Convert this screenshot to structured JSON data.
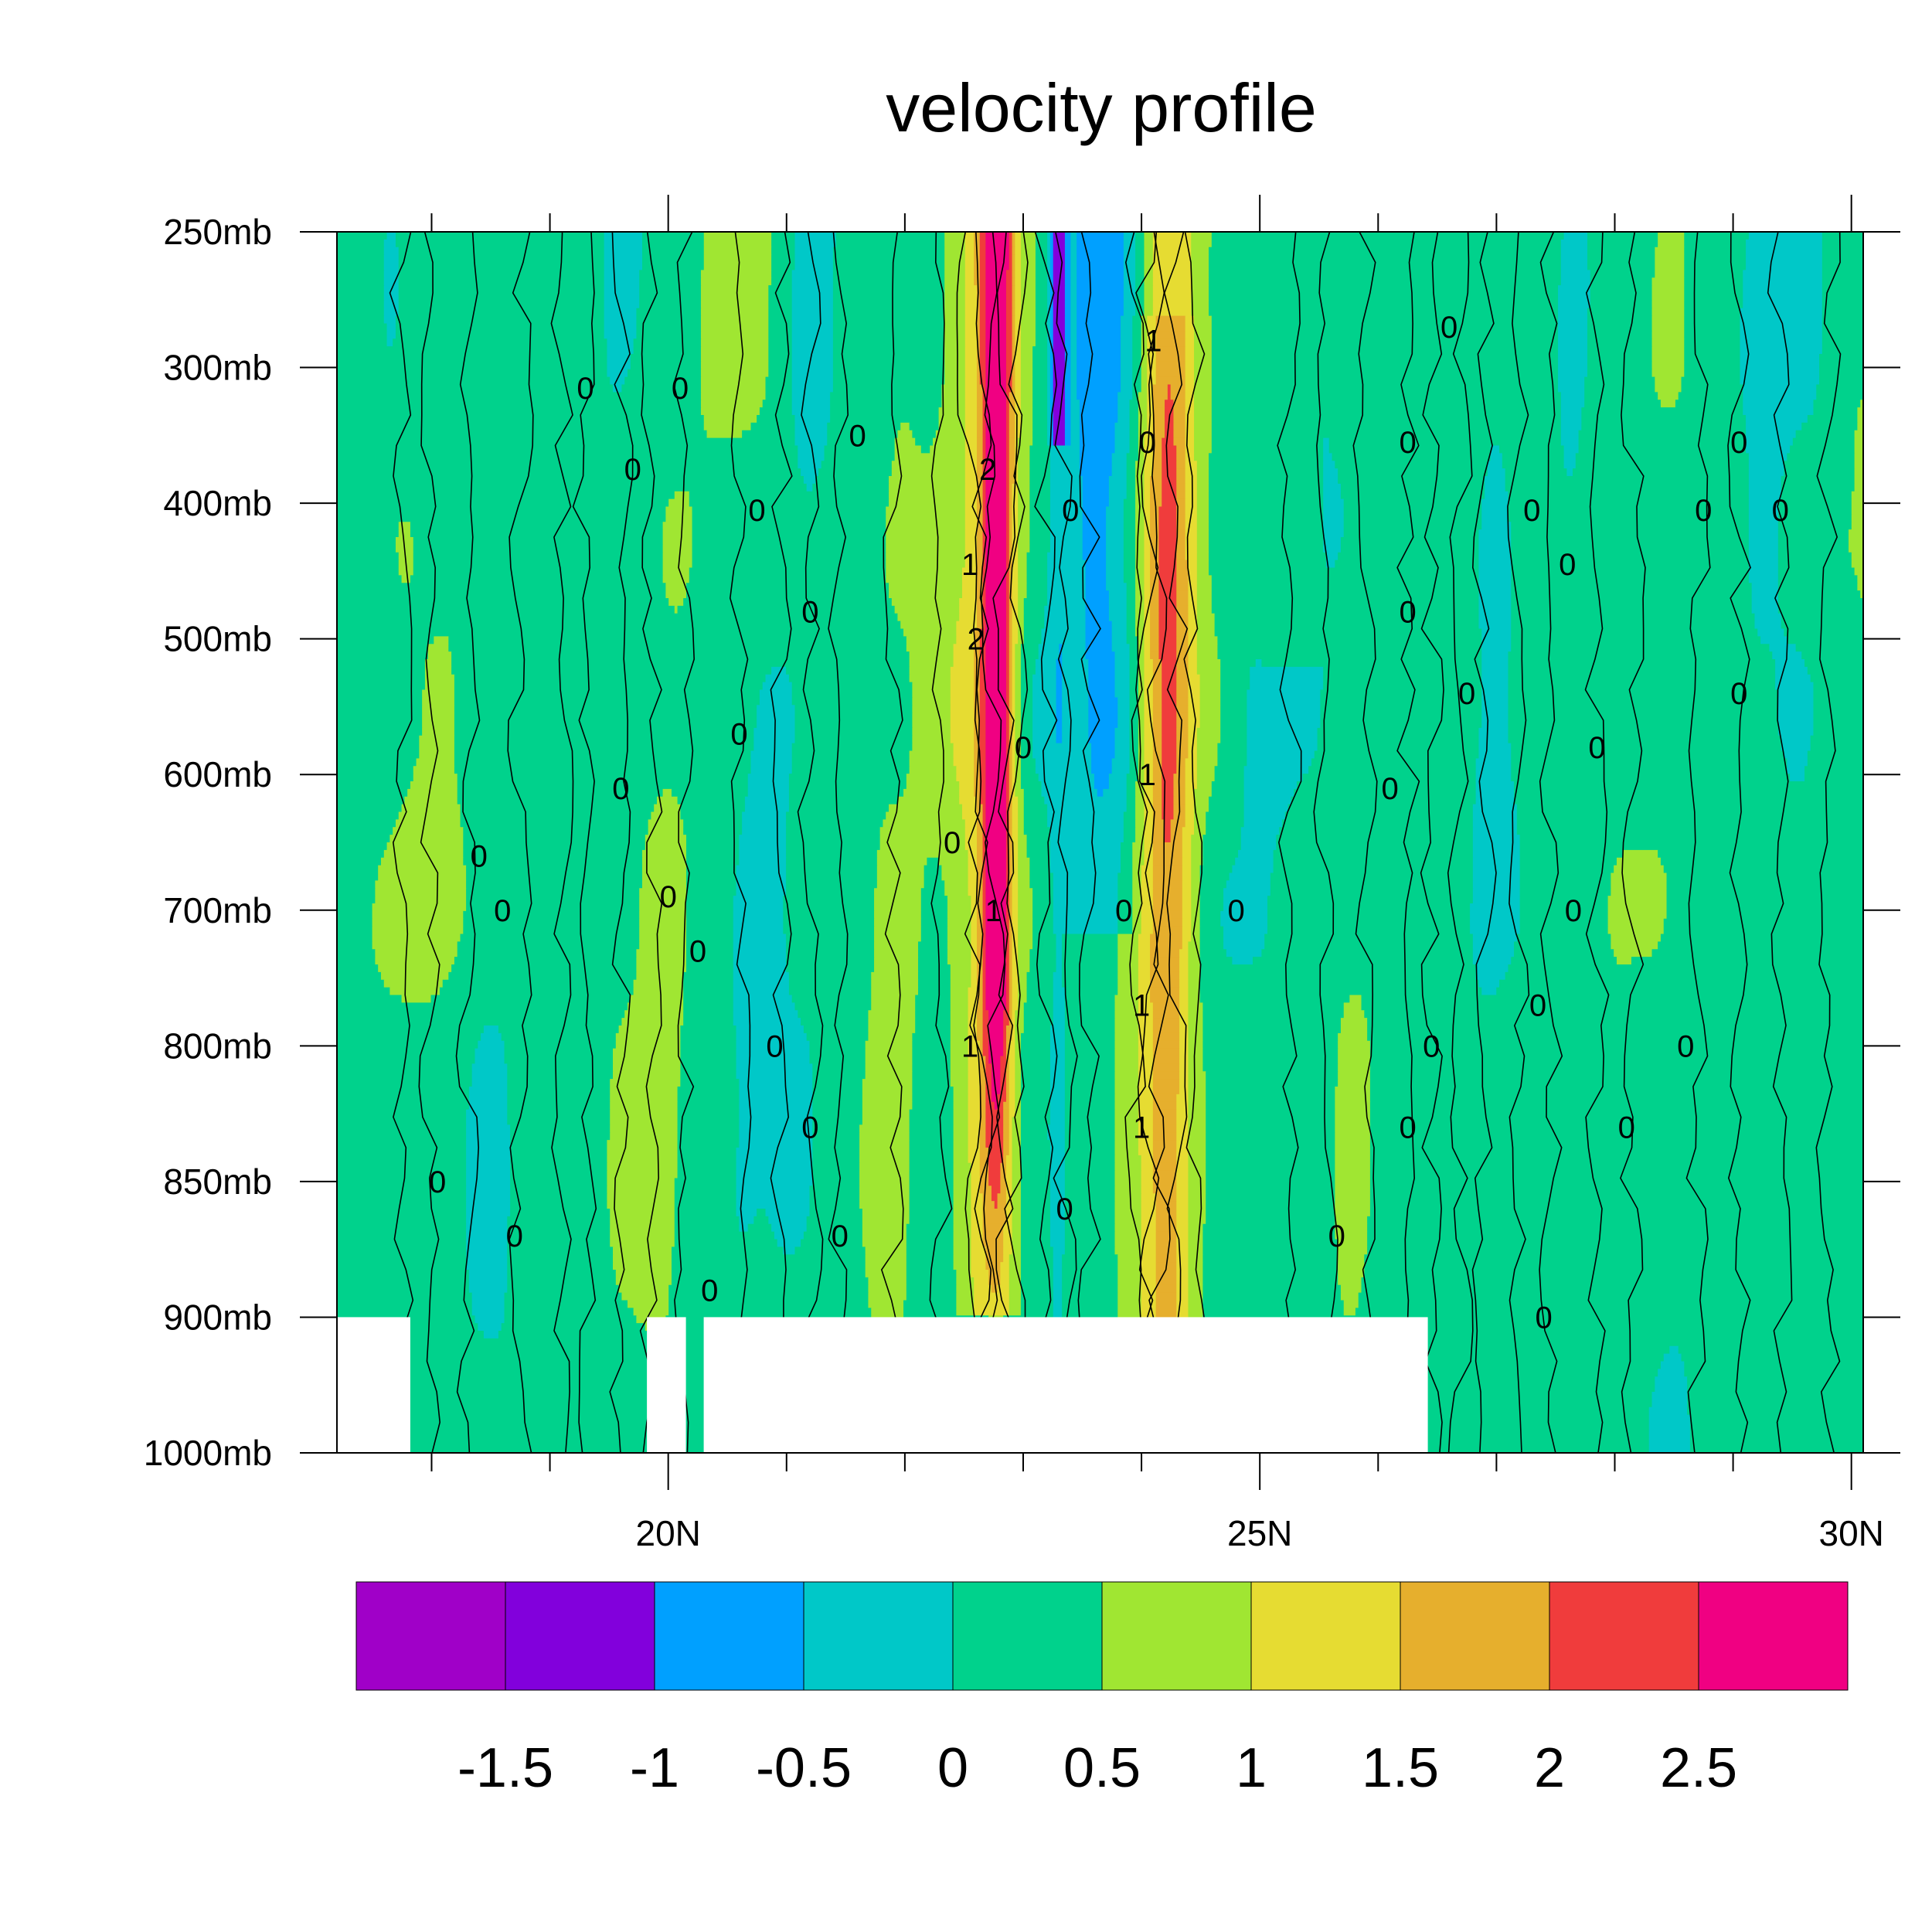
{
  "chart_data": {
    "type": "heatmap",
    "title": "velocity profile",
    "xlabel": "",
    "ylabel": "",
    "x_ticks": [
      {
        "value": 20,
        "label": "20N"
      },
      {
        "value": 25,
        "label": "25N"
      },
      {
        "value": 30,
        "label": "30N"
      }
    ],
    "x_range": [
      17.2,
      30.1
    ],
    "y_levels": [
      {
        "value": 250,
        "label": "250mb"
      },
      {
        "value": 300,
        "label": "300mb"
      },
      {
        "value": 400,
        "label": "400mb"
      },
      {
        "value": 500,
        "label": "500mb"
      },
      {
        "value": 600,
        "label": "600mb"
      },
      {
        "value": 700,
        "label": "700mb"
      },
      {
        "value": 800,
        "label": "800mb"
      },
      {
        "value": 850,
        "label": "850mb"
      },
      {
        "value": 900,
        "label": "900mb"
      },
      {
        "value": 1000,
        "label": "1000mb"
      }
    ],
    "y_axis_note": "pressure levels, equally spaced, top=250mb bottom=1000mb",
    "colorbar": {
      "colors": [
        "#a000c8",
        "#8200dc",
        "#00a0ff",
        "#00c8c8",
        "#00d28c",
        "#a0e632",
        "#e6dc32",
        "#e6af2d",
        "#f03c3c",
        "#f00082"
      ],
      "labels": [
        "-1.5",
        "-1",
        "-0.5",
        "0",
        "0.5",
        "1",
        "1.5",
        "2",
        "2.5"
      ]
    },
    "missing_data": "white region below 900mb (approx 17.2-17.8N, 19.8-20.1N, 20.3-26.4N)",
    "features": [
      {
        "region": "22.6-22.9N, 250-700mb",
        "value_range": [
          1.5,
          2.5
        ],
        "description": "positive maximum column"
      },
      {
        "region": "23.2-23.4N, 250-350mb",
        "value_range": [
          -1.5,
          -1.0
        ],
        "description": "negative minimum"
      },
      {
        "region": "23.3-24.0N, 250-700mb",
        "value_range": [
          -1.0,
          0.0
        ],
        "description": "negative column"
      },
      {
        "region": "24.0-24.5N, 300-900mb",
        "value_range": [
          1.0,
          2.0
        ],
        "description": "positive column"
      }
    ],
    "contour_labels": [
      "0",
      "1",
      "2"
    ]
  }
}
